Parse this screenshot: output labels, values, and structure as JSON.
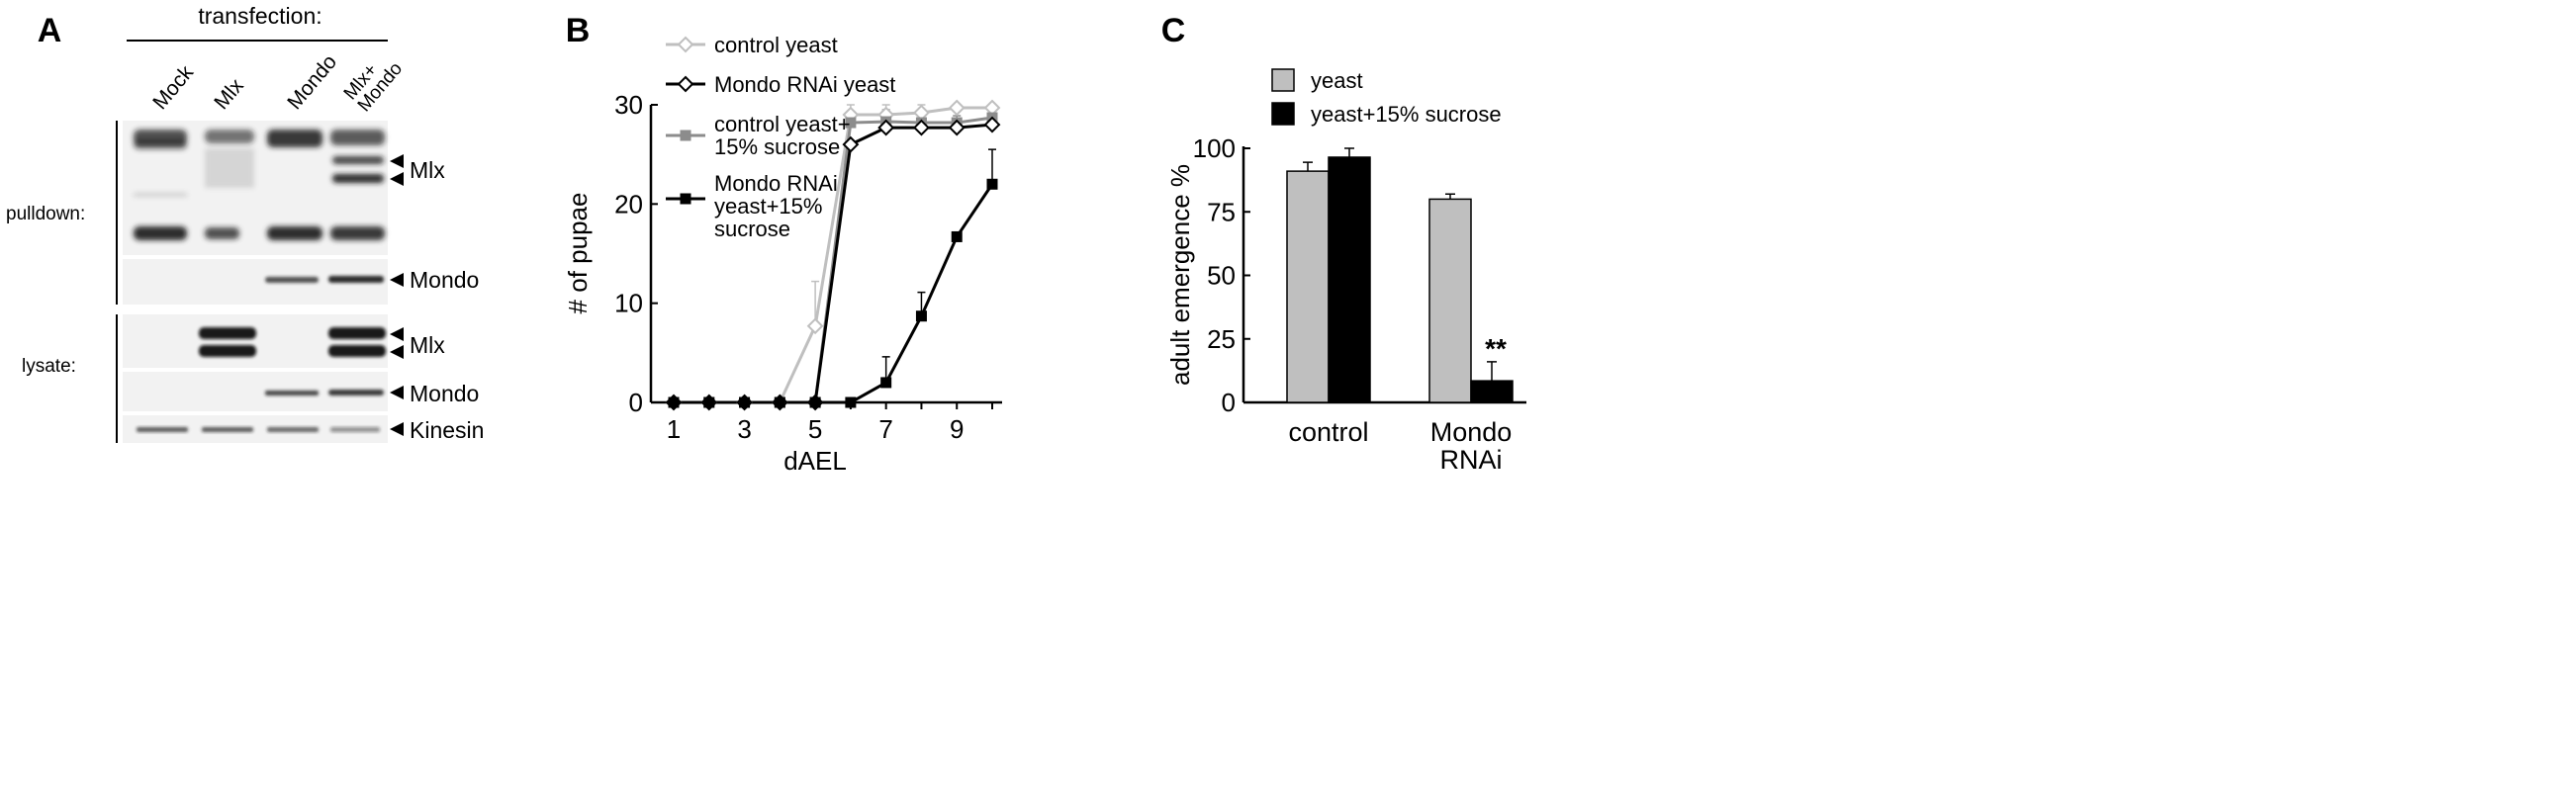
{
  "panels": {
    "a": {
      "letter": "A",
      "header": "transfection:",
      "lanes": [
        "Mock",
        "Mlx",
        "Mondo",
        [
          "Mlx+",
          "Mondo"
        ]
      ],
      "groups": {
        "pulldown": "pulldown:",
        "lysate": "lysate:"
      },
      "bands": {
        "pd_mlx": "Mlx",
        "pd_mondo": "Mondo",
        "ly_mlx": "Mlx",
        "ly_mondo": "Mondo",
        "ly_kinesin": "Kinesin"
      }
    },
    "b": {
      "letter": "B"
    },
    "c": {
      "letter": "C",
      "significance": "**"
    }
  },
  "chart_data": [
    {
      "type": "line",
      "panel": "B",
      "xlabel": "dAEL",
      "ylabel": "# of pupae",
      "xlim": [
        1,
        10
      ],
      "ylim": [
        0,
        30
      ],
      "x_ticks": [
        1,
        3,
        5,
        7,
        9
      ],
      "y_ticks": [
        0,
        10,
        20,
        30
      ],
      "x": [
        1,
        2,
        3,
        4,
        5,
        6,
        7,
        8,
        9,
        10
      ],
      "legend_position": "top-left",
      "series": [
        {
          "name": "control yeast",
          "marker": "diamond-open",
          "color": "#bfbfbf",
          "values": [
            0,
            0,
            0,
            0,
            7.7,
            29,
            29,
            29.2,
            29.7,
            29.7
          ],
          "errors": [
            0,
            0,
            0,
            0,
            4.5,
            1.0,
            1.0,
            0.8,
            0,
            0
          ]
        },
        {
          "name": "Mondo RNAi yeast",
          "marker": "diamond-open",
          "color": "#000000",
          "values": [
            0,
            0,
            0,
            0,
            0,
            26,
            27.7,
            27.7,
            27.7,
            28
          ],
          "errors": [
            0,
            0,
            0,
            0,
            0,
            0,
            0,
            0,
            0,
            0
          ]
        },
        {
          "name": [
            "control yeast+",
            "15% sucrose"
          ],
          "marker": "square",
          "color": "#8c8c8c",
          "values": [
            0,
            0,
            0,
            0,
            0,
            28.2,
            28.3,
            28.2,
            28.2,
            28.7
          ],
          "errors": [
            0,
            0,
            0,
            0,
            0,
            0.7,
            1.2,
            0.8,
            0.7,
            0.7
          ]
        },
        {
          "name": [
            "Mondo RNAi",
            "yeast+15%",
            "sucrose"
          ],
          "marker": "square",
          "color": "#000000",
          "values": [
            0,
            0,
            0,
            0,
            0,
            0,
            2,
            8.7,
            16.7,
            22
          ],
          "errors": [
            0,
            0,
            0,
            0,
            0,
            0,
            2.6,
            2.4,
            0,
            3.5
          ]
        }
      ]
    },
    {
      "type": "bar",
      "panel": "C",
      "ylabel": "adult emergence %",
      "ylim": [
        0,
        100
      ],
      "y_ticks": [
        0,
        25,
        50,
        75,
        100
      ],
      "categories": [
        "control",
        [
          "Mondo",
          "RNAi"
        ]
      ],
      "legend_position": "top-right",
      "series": [
        {
          "name": "yeast",
          "color": "#bfbfbf",
          "values": [
            91,
            80
          ],
          "errors": [
            3.5,
            2
          ]
        },
        {
          "name": "yeast+15% sucrose",
          "color": "#000000",
          "values": [
            96.5,
            8.5
          ],
          "errors": [
            3.5,
            7.5
          ]
        }
      ]
    }
  ]
}
